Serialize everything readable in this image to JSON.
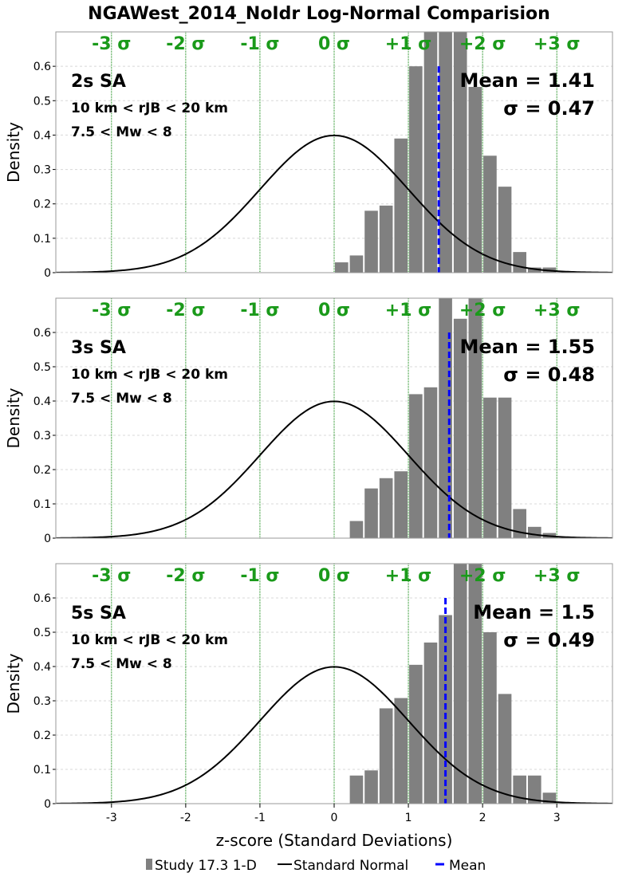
{
  "title": "NGAWest_2014_NoIdr Log-Normal Comparision",
  "xlabel": "z-score (Standard Deviations)",
  "legend": {
    "bars": "Study 17.3 1-D",
    "curve": "Standard Normal",
    "mean": "Mean"
  },
  "sigma_labels": [
    "-3 σ",
    "-2 σ",
    "-1 σ",
    "0 σ",
    "+1 σ",
    "+2 σ",
    "+3 σ"
  ],
  "colors": {
    "bars": "#808080",
    "curve": "#000000",
    "mean": "#0000ff",
    "sigma_lines": "#008000",
    "sigma_text": "#1a9a1a",
    "grid": "#d8d8d8"
  },
  "chart_data": [
    {
      "type": "bar",
      "title": "2s SA",
      "ylabel": "Density",
      "xlim": [
        -3.75,
        3.75
      ],
      "ylim": [
        0,
        0.7
      ],
      "yticks": [
        0,
        0.1,
        0.2,
        0.3,
        0.4,
        0.5,
        0.6
      ],
      "xticks": [
        -3,
        -2,
        -1,
        0,
        1,
        2,
        3
      ],
      "annotations": [
        "10 km < rJB < 20 km",
        "7.5 < Mw < 8"
      ],
      "mean_label": "Mean = 1.41",
      "sigma_label": "σ = 0.47",
      "mean": 1.41,
      "bin_width": 0.2,
      "bins": [
        0.0,
        0.2,
        0.4,
        0.6,
        0.8,
        1.0,
        1.2,
        1.4,
        1.6,
        1.8,
        2.0,
        2.2,
        2.4,
        2.6,
        2.8
      ],
      "values": [
        0.03,
        0.05,
        0.18,
        0.195,
        0.39,
        0.6,
        0.8,
        0.85,
        0.75,
        0.54,
        0.34,
        0.25,
        0.06,
        0.015,
        0.015
      ]
    },
    {
      "type": "bar",
      "title": "3s SA",
      "ylabel": "Density",
      "xlim": [
        -3.75,
        3.75
      ],
      "ylim": [
        0,
        0.7
      ],
      "yticks": [
        0,
        0.1,
        0.2,
        0.3,
        0.4,
        0.5,
        0.6
      ],
      "xticks": [
        -3,
        -2,
        -1,
        0,
        1,
        2,
        3
      ],
      "annotations": [
        "10 km < rJB < 20 km",
        "7.5 < Mw < 8"
      ],
      "mean_label": "Mean = 1.55",
      "sigma_label": "σ = 0.48",
      "mean": 1.55,
      "bin_width": 0.2,
      "bins": [
        0.2,
        0.4,
        0.6,
        0.8,
        1.0,
        1.2,
        1.4,
        1.6,
        1.8,
        2.0,
        2.2,
        2.4,
        2.6,
        2.8
      ],
      "values": [
        0.05,
        0.145,
        0.175,
        0.195,
        0.42,
        0.44,
        0.85,
        0.64,
        0.9,
        0.41,
        0.41,
        0.085,
        0.033,
        0.015
      ]
    },
    {
      "type": "bar",
      "title": "5s SA",
      "ylabel": "Density",
      "xlim": [
        -3.75,
        3.75
      ],
      "ylim": [
        0,
        0.7
      ],
      "yticks": [
        0,
        0.1,
        0.2,
        0.3,
        0.4,
        0.5,
        0.6
      ],
      "xticks": [
        -3,
        -2,
        -1,
        0,
        1,
        2,
        3
      ],
      "annotations": [
        "10 km < rJB < 20 km",
        "7.5 < Mw < 8"
      ],
      "mean_label": "Mean = 1.5",
      "sigma_label": "σ = 0.49",
      "mean": 1.5,
      "bin_width": 0.2,
      "bins": [
        0.2,
        0.4,
        0.6,
        0.8,
        1.0,
        1.2,
        1.4,
        1.6,
        1.8,
        2.0,
        2.2,
        2.4,
        2.6,
        2.8
      ],
      "values": [
        0.082,
        0.097,
        0.278,
        0.308,
        0.405,
        0.47,
        0.55,
        0.85,
        0.72,
        0.5,
        0.32,
        0.082,
        0.082,
        0.032
      ]
    }
  ]
}
